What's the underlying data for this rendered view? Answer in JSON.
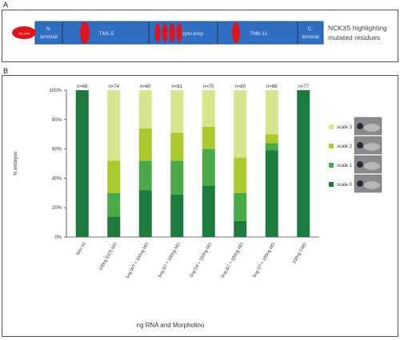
{
  "panel_a": {
    "label": "A",
    "segments": [
      {
        "label": "N-\nterminal"
      },
      {
        "label": "TM1-5"
      },
      {
        "label": "cyto.loop"
      },
      {
        "label": "TM6-11"
      },
      {
        "label": "C-\nterminal"
      }
    ],
    "signal_label": "sig. pep",
    "caption_line1": "NCKX5 highlighting",
    "caption_line2": "mutated residues",
    "colors": {
      "bar": "#2f6fc2",
      "marker": "#e0141c"
    }
  },
  "panel_b": {
    "label": "B"
  },
  "chart_data": {
    "type": "bar",
    "stacked": true,
    "categories": [
      "Non inj",
      "100ng 5375 MO",
      "5ng WT + 100ng MO",
      "5ng ΔT + 100ng MO",
      "5ng D4 + 100ng MO",
      "5ng ΔC + 100ng MO",
      "5ng ST + 100ng MO",
      "100ng CMO"
    ],
    "n_labels": [
      "n=66",
      "n=74",
      "n=60",
      "n=81",
      "n=70",
      "n=60",
      "n=66",
      "n=77"
    ],
    "series": [
      {
        "name": "scale 0",
        "color": "#1b7a3c",
        "values": [
          100,
          14,
          32,
          29,
          35,
          11,
          59,
          100
        ]
      },
      {
        "name": "scale 1",
        "color": "#4aaa45",
        "values": [
          0,
          16,
          20,
          23,
          25,
          19,
          5,
          0
        ]
      },
      {
        "name": "scale 2",
        "color": "#a9c92e",
        "values": [
          0,
          22,
          22,
          19,
          15,
          24,
          6,
          0
        ]
      },
      {
        "name": "scale 3",
        "color": "#d6e68f",
        "values": [
          0,
          48,
          26,
          29,
          25,
          46,
          30,
          0
        ]
      }
    ],
    "yticks": [
      "0%",
      "20%",
      "40%",
      "60%",
      "80%",
      "100%"
    ],
    "ylim": [
      0,
      100
    ],
    "ylabel": "% embryos",
    "xlabel": "ng RNA and Morpholino",
    "legend_position": "right"
  }
}
